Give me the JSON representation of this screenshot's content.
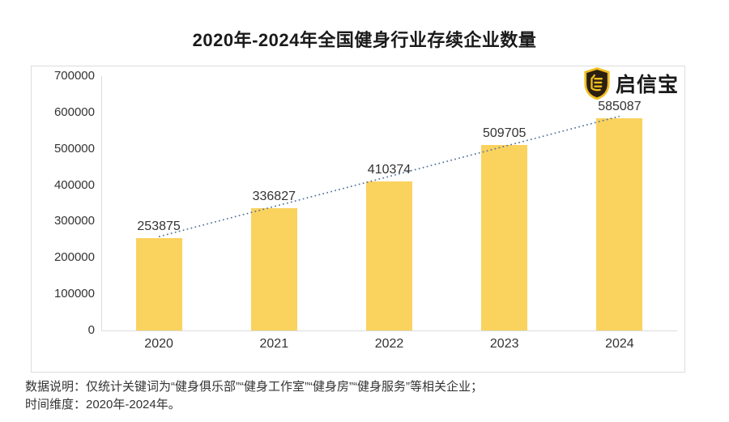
{
  "page": {
    "title": "2020年-2024年全国健身行业存续企业数量"
  },
  "logo": {
    "text": "启信宝",
    "icon": "qixinbao-shield-icon",
    "brand_gold": "#F0BE1F",
    "shield_dark": "#2B1F12"
  },
  "chart_data": {
    "type": "bar",
    "title": "2020年-2024年全国健身行业存续企业数量",
    "categories": [
      "2020",
      "2021",
      "2022",
      "2023",
      "2024"
    ],
    "values": [
      253875,
      336827,
      410374,
      509705,
      585087
    ],
    "xlabel": "",
    "ylabel": "",
    "ylim": [
      0,
      700000
    ],
    "ytick_step": 100000,
    "ytick_labels": [
      "0",
      "100000",
      "200000",
      "300000",
      "400000",
      "500000",
      "600000",
      "700000"
    ],
    "bar_color": "#FAD25E",
    "grid": "off",
    "legend": "none",
    "trendline": {
      "style": "dotted",
      "color": "#54749B",
      "from_category": "2020",
      "from_value": 253875,
      "to_category": "2024",
      "to_value": 585087
    }
  },
  "footnote": {
    "line1": "数据说明：仅统计关键词为“健身俱乐部”“健身工作室”“健身房”“健身服务”等相关企业；",
    "line2": "时间维度：2020年-2024年。"
  }
}
